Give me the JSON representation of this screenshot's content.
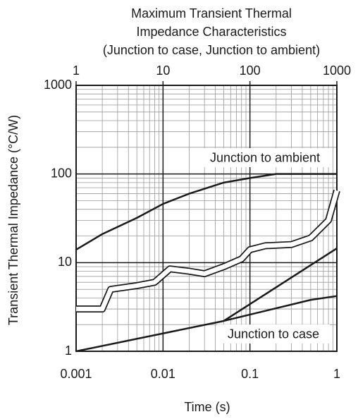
{
  "chart_data": {
    "type": "line",
    "title": [
      "Maximum Transient Thermal",
      "Impedance Characteristics",
      "(Junction to case, Junction to ambient)"
    ],
    "xlabel": "Time  (s)",
    "ylabel": "Transient Thermal Impedance  (°C/W)",
    "log_x": true,
    "log_y": true,
    "grid": true,
    "color": "#1a1a1a",
    "xlim": [
      0.001,
      1
    ],
    "xticks": [
      0.001,
      0.01,
      0.1,
      1
    ],
    "x2lim": [
      1,
      1000
    ],
    "x2ticks": [
      1,
      10,
      100,
      1000
    ],
    "ylim": [
      1,
      1000
    ],
    "yticks": [
      1,
      10,
      100,
      1000
    ],
    "annotations": [
      "Junction to ambient",
      "Junction to case"
    ],
    "series": [
      {
        "x": [
          0.001,
          0.002,
          0.005,
          0.01,
          0.02,
          0.05,
          0.1,
          0.2,
          1
        ],
        "values": [
          14,
          21,
          32,
          46,
          60,
          80,
          90,
          100,
          100
        ]
      },
      {
        "x": [
          0.001,
          0.05,
          0.5,
          1
        ],
        "values": [
          1,
          2.2,
          3.8,
          4.2
        ]
      },
      {
        "x": [
          0.05,
          1
        ],
        "values": [
          2.2,
          14.5
        ]
      },
      {
        "x": [
          0.001,
          0.002,
          0.0025,
          0.005,
          0.008,
          0.012,
          0.02,
          0.03,
          0.05,
          0.08,
          0.1,
          0.15,
          0.3,
          0.5,
          0.8,
          1
        ],
        "values": [
          3,
          3,
          5,
          5.5,
          6,
          8.5,
          8,
          7.5,
          9,
          11,
          14,
          15.5,
          16,
          19,
          30,
          65
        ],
        "style": "double"
      }
    ]
  }
}
